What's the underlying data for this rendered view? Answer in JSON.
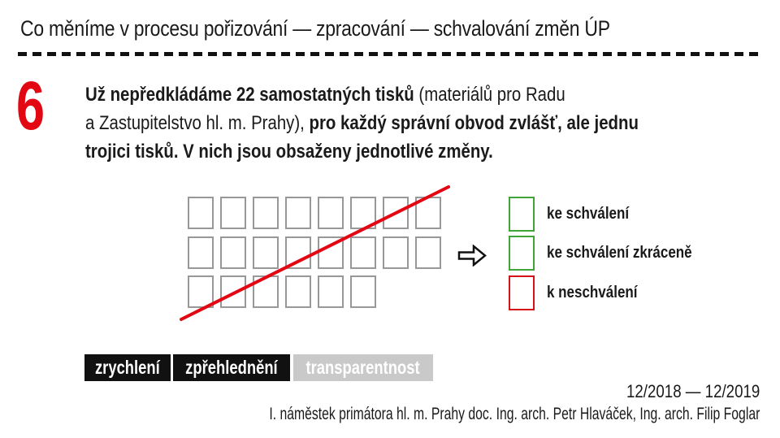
{
  "slide": {
    "header": {
      "title": "Co měníme v procesu pořizování — zpracování — schvalování změn ÚP"
    },
    "step_number": "6",
    "paragraph": {
      "line1_bold": "Už nepředkládáme 22 samostatných tisků",
      "line1_regular": " (materiálů pro Radu",
      "line2_regular": "a Zastupitelstvo hl. m. Prahy), ",
      "line2_bold": "pro každý správní obvod zvlášť, ale jednu",
      "line3_bold": "trojici tisků. V nich jsou obsaženy jednotlivé změny."
    },
    "diagram": {
      "grid_rows": [
        8,
        8,
        6
      ],
      "total_squares": 22,
      "arrow_icon": "rightwards-white-arrow",
      "strikethrough_line_color": "#e30613",
      "square_border_color": "#989898",
      "legend": [
        {
          "label": "ke schválení",
          "color": "#41a437"
        },
        {
          "label": "ke schválení zkráceně",
          "color": "#41a437"
        },
        {
          "label": "k neschválení",
          "color": "#d51218"
        }
      ]
    },
    "tags": [
      {
        "label": "zrychlení",
        "bg": "#111111",
        "fg": "#ffffff"
      },
      {
        "label": "zpřehlednění",
        "bg": "#111111",
        "fg": "#ffffff"
      },
      {
        "label": "transparentnost",
        "bg": "#c9c9c9",
        "fg": "#ffffff"
      }
    ],
    "footer": {
      "date_range": "12/2018 — 12/2019",
      "credit": "I. náměstek primátora hl. m. Prahy doc. Ing. arch. Petr Hlaváček, Ing. arch. Filip Foglar"
    },
    "colors": {
      "accent_red": "#e30613",
      "legend_green": "#41a437",
      "legend_red": "#d51218",
      "tag_black": "#111111",
      "tag_gray": "#c9c9c9",
      "text": "#1a1a1a"
    }
  }
}
